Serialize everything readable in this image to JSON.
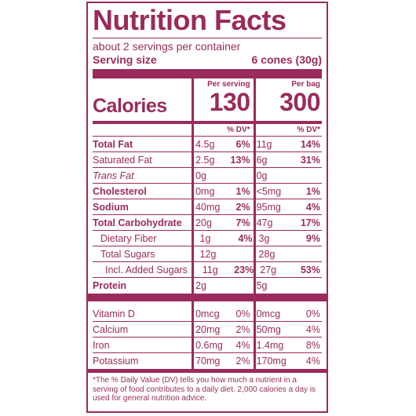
{
  "title": "Nutrition Facts",
  "servings_per_container": "about 2 servings per container",
  "serving_size_label": "Serving size",
  "serving_size_value": "6 cones (30g)",
  "calories_label": "Calories",
  "col1_header": "Per serving",
  "col2_header": "Per bag",
  "calories_per_serving": "130",
  "calories_per_bag": "300",
  "dv_header": "% DV*",
  "nutrients": [
    {
      "name": "Total Fat",
      "amt1": "4.5g",
      "dv1": "6%",
      "amt2": "11g",
      "dv2": "14%"
    },
    {
      "name": "Saturated Fat",
      "amt1": "2.5g",
      "dv1": "13%",
      "amt2": "6g",
      "dv2": "31%"
    },
    {
      "name": "Trans Fat",
      "amt1": "0g",
      "dv1": "",
      "amt2": "0g",
      "dv2": ""
    },
    {
      "name": "Cholesterol",
      "amt1": "0mg",
      "dv1": "1%",
      "amt2": "<5mg",
      "dv2": "1%"
    },
    {
      "name": "Sodium",
      "amt1": "40mg",
      "dv1": "2%",
      "amt2": "95mg",
      "dv2": "4%"
    },
    {
      "name": "Total Carbohydrate",
      "amt1": "20g",
      "dv1": "7%",
      "amt2": "47g",
      "dv2": "17%"
    },
    {
      "name": "Dietary Fiber",
      "amt1": "1g",
      "dv1": "4%",
      "amt2": "3g",
      "dv2": "9%"
    },
    {
      "name": "Total Sugars",
      "amt1": "12g",
      "dv1": "",
      "amt2": "28g",
      "dv2": ""
    },
    {
      "name": "Incl. Added Sugars",
      "amt1": "11g",
      "dv1": "23%",
      "amt2": "27g",
      "dv2": "53%"
    },
    {
      "name": "Protein",
      "amt1": "2g",
      "dv1": "",
      "amt2": "5g",
      "dv2": ""
    }
  ],
  "vitamins": [
    {
      "name": "Vitamin D",
      "amt1": "0mcg",
      "dv1": "0%",
      "amt2": "0mcg",
      "dv2": "0%"
    },
    {
      "name": "Calcium",
      "amt1": "20mg",
      "dv1": "2%",
      "amt2": "50mg",
      "dv2": "4%"
    },
    {
      "name": "Iron",
      "amt1": "0.6mg",
      "dv1": "4%",
      "amt2": "1.4mg",
      "dv2": "8%"
    },
    {
      "name": "Potassium",
      "amt1": "70mg",
      "dv1": "2%",
      "amt2": "170mg",
      "dv2": "4%"
    }
  ],
  "footnote": "*The % Daily Value (DV) tells you how much a nutrient in a serving of food contributes to a daily diet. 2,000 calories a day is used for general nutrition advice.",
  "colors": {
    "label": "#9a2b5c",
    "background": "#ffffff"
  }
}
